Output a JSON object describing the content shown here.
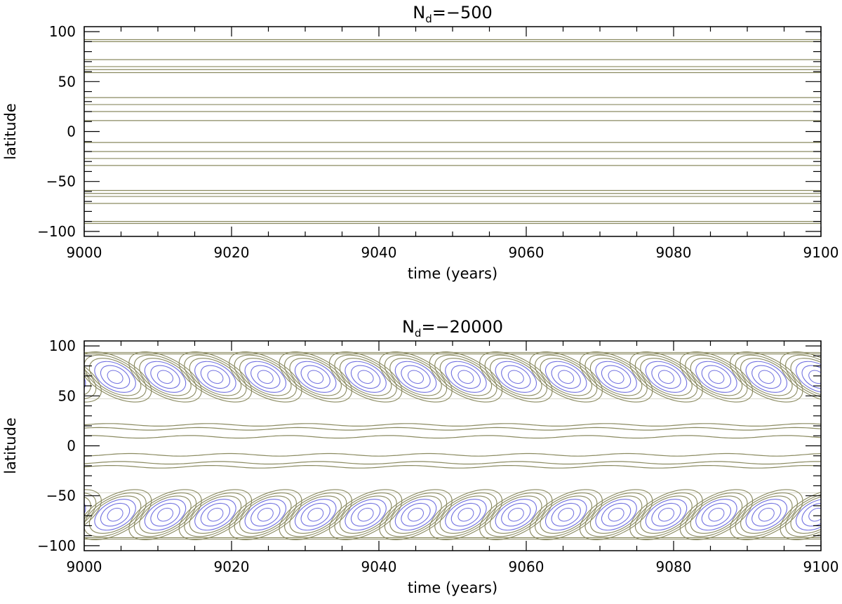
{
  "chart_data": [
    {
      "type": "contour",
      "title_main": "N",
      "title_sub": "d",
      "title_rest": "=−500",
      "xlabel": "time (years)",
      "ylabel": "latitude",
      "xlim": [
        9000,
        9100
      ],
      "ylim": [
        -105,
        105
      ],
      "xticks": [
        {
          "v": 9000,
          "label": "9000"
        },
        {
          "v": 9020,
          "label": "9020"
        },
        {
          "v": 9040,
          "label": "9040"
        },
        {
          "v": 9060,
          "label": "9060"
        },
        {
          "v": 9080,
          "label": "9080"
        },
        {
          "v": 9100,
          "label": "9100"
        }
      ],
      "yticks": [
        {
          "v": 100,
          "label": "100"
        },
        {
          "v": 50,
          "label": "50"
        },
        {
          "v": 0,
          "label": "0"
        },
        {
          "v": -50,
          "label": "−50"
        },
        {
          "v": -100,
          "label": "−100"
        }
      ],
      "flat_contour_latitudes": [
        92,
        90,
        72,
        65,
        62,
        59,
        34,
        27,
        20,
        11,
        -11,
        -20,
        -27,
        -34,
        -59,
        -62,
        -65,
        -72,
        -90,
        -92
      ],
      "contour_color": "#8a8a60"
    },
    {
      "type": "contour",
      "title_main": "N",
      "title_sub": "d",
      "title_rest": "=−20000",
      "xlabel": "time (years)",
      "ylabel": "latitude",
      "xlim": [
        9000,
        9100
      ],
      "ylim": [
        -105,
        105
      ],
      "xticks": [
        {
          "v": 9000,
          "label": "9000"
        },
        {
          "v": 9020,
          "label": "9020"
        },
        {
          "v": 9040,
          "label": "9040"
        },
        {
          "v": 9060,
          "label": "9060"
        },
        {
          "v": 9080,
          "label": "9080"
        },
        {
          "v": 9100,
          "label": "9100"
        }
      ],
      "yticks": [
        {
          "v": 100,
          "label": "100"
        },
        {
          "v": 50,
          "label": "50"
        },
        {
          "v": 0,
          "label": "0"
        },
        {
          "v": -50,
          "label": "−50"
        },
        {
          "v": -100,
          "label": "−100"
        }
      ],
      "cycle_period_years": 6.8,
      "first_cycle_time": 9004.2,
      "wavy_contour_latitudes": [
        21,
        17,
        9,
        -9,
        -17,
        -21
      ],
      "wavy_amplitude": 1.3,
      "polar_contour_latitudes": [
        92,
        -92
      ],
      "contour_color": "#8a8a60",
      "cell_color": "#7070e0"
    }
  ]
}
